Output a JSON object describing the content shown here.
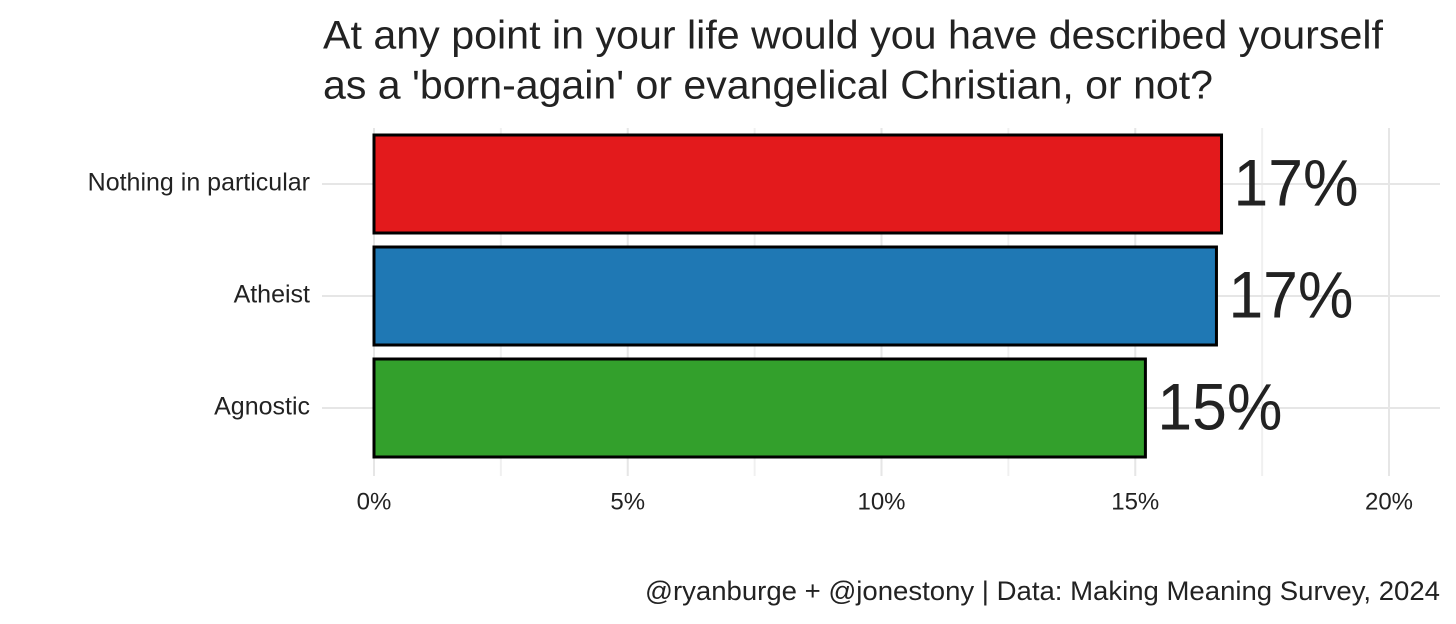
{
  "chart_data": {
    "type": "bar",
    "orientation": "horizontal",
    "title": [
      "At any point in your life would you have described yourself",
      "as a 'born-again' or evangelical Christian, or not?"
    ],
    "categories": [
      "Nothing in particular",
      "Atheist",
      "Agnostic"
    ],
    "values": [
      16.7,
      16.6,
      15.2
    ],
    "value_labels": [
      "17%",
      "17%",
      "15%"
    ],
    "colors": [
      "#e31a1c",
      "#1f78b4",
      "#33a02c"
    ],
    "xlim": [
      0,
      20
    ],
    "xticks": [
      {
        "value": 0,
        "label": "0%"
      },
      {
        "value": 5,
        "label": "5%"
      },
      {
        "value": 10,
        "label": "10%"
      },
      {
        "value": 15,
        "label": "15%"
      },
      {
        "value": 20,
        "label": "20%"
      }
    ],
    "minor_xticks": [
      2.5,
      7.5,
      12.5,
      17.5
    ],
    "grid": true,
    "caption": "@ryanburge + @jonestony | Data: Making Meaning Survey, 2024"
  }
}
